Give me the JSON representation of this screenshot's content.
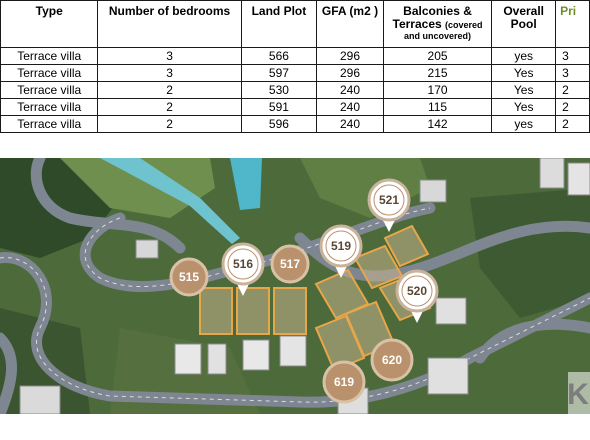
{
  "table": {
    "headers": {
      "type": "Type",
      "bedrooms": "Number of bedrooms",
      "land_plot": "Land Plot",
      "gfa": "GFA (m2 )",
      "balconies_main": "Balconies &",
      "balconies_sub1": "Terraces",
      "balconies_sub2": "(covered",
      "balconies_sub3": "and uncovered)",
      "pool_line1": "Overall",
      "pool_line2": "Pool",
      "price": "Pri"
    },
    "rows": [
      {
        "type": "Terrace villa",
        "bedrooms": "3",
        "land_plot": "566",
        "gfa": "296",
        "balconies": "205",
        "pool": "yes",
        "price": "3"
      },
      {
        "type": "Terrace villa",
        "bedrooms": "3",
        "land_plot": "597",
        "gfa": "296",
        "balconies": "215",
        "pool": "Yes",
        "price": "3"
      },
      {
        "type": "Terrace villa",
        "bedrooms": "2",
        "land_plot": "530",
        "gfa": "240",
        "balconies": "170",
        "pool": "Yes",
        "price": "2"
      },
      {
        "type": "Terrace villa",
        "bedrooms": "2",
        "land_plot": "591",
        "gfa": "240",
        "balconies": "115",
        "pool": "Yes",
        "price": "2"
      },
      {
        "type": "Terrace villa",
        "bedrooms": "2",
        "land_plot": "596",
        "gfa": "240",
        "balconies": "142",
        "pool": "yes",
        "price": "2"
      }
    ]
  },
  "map": {
    "pins": [
      {
        "label": "515",
        "style": "filled"
      },
      {
        "label": "516",
        "style": "white"
      },
      {
        "label": "517",
        "style": "filled"
      },
      {
        "label": "519",
        "style": "white"
      },
      {
        "label": "521",
        "style": "white"
      },
      {
        "label": "520",
        "style": "white"
      },
      {
        "label": "620",
        "style": "filled"
      },
      {
        "label": "619",
        "style": "filled"
      }
    ],
    "watermark": "K",
    "colors": {
      "pin_filled": "#b9916c",
      "pin_white": "#ffffff",
      "plot_outline": "#e8a64a",
      "road": "#7d8590",
      "vegetation": "#4d6a3c"
    }
  }
}
